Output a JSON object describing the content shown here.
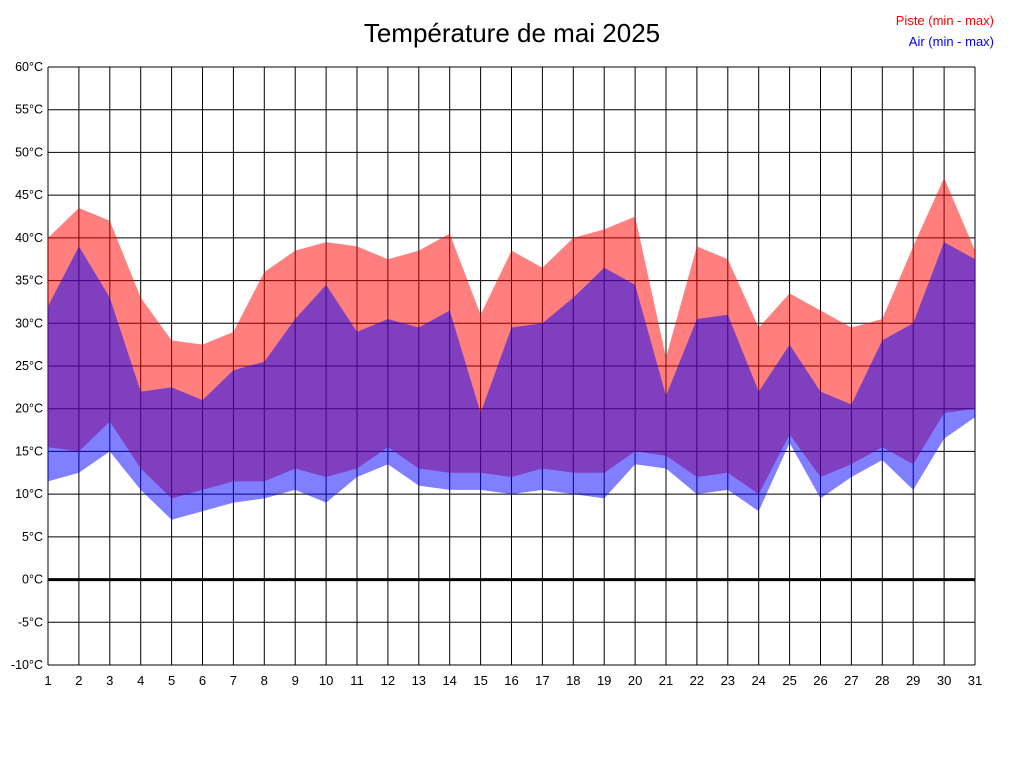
{
  "title": "Température de mai 2025",
  "legend": {
    "piste_label": "Piste (min - max)",
    "air_label": "Air (min - max)"
  },
  "colors": {
    "piste": "#ff0000",
    "air": "#0000ff",
    "piste_fill": "rgba(255,0,0,0.5)",
    "air_fill": "rgba(0,0,255,0.5)",
    "grid": "#000000",
    "zero_line": "#000000",
    "text": "#000000"
  },
  "chart_data": {
    "type": "area",
    "title": "Température de mai 2025",
    "x": [
      1,
      2,
      3,
      4,
      5,
      6,
      7,
      8,
      9,
      10,
      11,
      12,
      13,
      14,
      15,
      16,
      17,
      18,
      19,
      20,
      21,
      22,
      23,
      24,
      25,
      26,
      27,
      28,
      29,
      30,
      31
    ],
    "ylim": [
      -10,
      60
    ],
    "y_step": 5,
    "y_unit": "°C",
    "grid": true,
    "legend_position": "top-right",
    "series": [
      {
        "name": "Piste max",
        "values": [
          40,
          43.5,
          42,
          33,
          28,
          27.5,
          29,
          36,
          38.5,
          39.5,
          39,
          37.5,
          38.5,
          40.5,
          31,
          38.5,
          36.5,
          40,
          41,
          42.5,
          26,
          39,
          37.5,
          29.5,
          33.5,
          31.5,
          29.5,
          30.5,
          39,
          47,
          38.5
        ]
      },
      {
        "name": "Piste min",
        "values": [
          15.5,
          15,
          18.5,
          13,
          9.5,
          10.5,
          11.5,
          11.5,
          13,
          12,
          13,
          15.5,
          13,
          12.5,
          12.5,
          12,
          13,
          12.5,
          12.5,
          15,
          14.5,
          12,
          12.5,
          10,
          17,
          12,
          13.5,
          15.5,
          13.5,
          19.5,
          20
        ]
      },
      {
        "name": "Air max",
        "values": [
          32,
          39,
          33,
          22,
          22.5,
          21,
          24.5,
          25.5,
          30.5,
          34.5,
          29,
          30.5,
          29.5,
          31.5,
          19.5,
          29.5,
          30,
          33,
          36.5,
          34.5,
          21.5,
          30.5,
          31,
          22,
          27.5,
          22,
          20.5,
          28,
          30,
          39.5,
          37.5
        ]
      },
      {
        "name": "Air min",
        "values": [
          11.5,
          12.5,
          15,
          10.5,
          7,
          8,
          9,
          9.5,
          10.5,
          9,
          12,
          13.5,
          11,
          10.5,
          10.5,
          10,
          10.5,
          10,
          9.5,
          13.5,
          13,
          10,
          10.5,
          8,
          16,
          9.5,
          12,
          14,
          10.5,
          16.5,
          19
        ]
      }
    ]
  }
}
